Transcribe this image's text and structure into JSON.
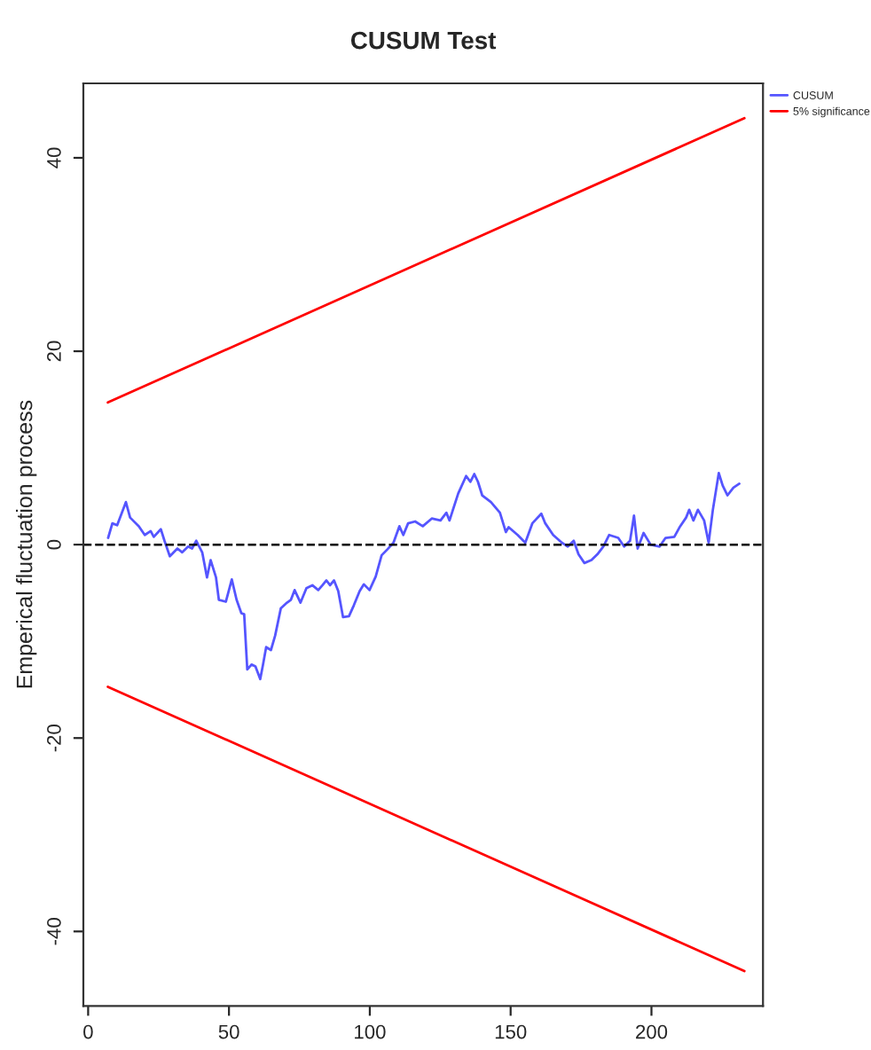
{
  "chart_data": {
    "type": "line",
    "title": "CUSUM Test",
    "ylabel": "Emperical fluctuation process",
    "xlim": [
      -1.7,
      239.6
    ],
    "ylim": [
      -47.7,
      47.7
    ],
    "xticks": [
      0,
      50,
      100,
      150,
      200
    ],
    "yticks": [
      -40,
      -20,
      0,
      20,
      40
    ],
    "grid": false,
    "legend": "top right",
    "line_style": "solid",
    "marker": "none",
    "ref_lines": [
      {
        "axis": "y",
        "value": 0,
        "color": "#000000",
        "line_style": "dashed"
      }
    ],
    "series": [
      {
        "name": "CUSUM",
        "color": "#5555ff",
        "x": [
          7.1,
          8.6,
          10.3,
          13.4,
          14.9,
          18,
          20.1,
          22.2,
          23.3,
          25.8,
          27.1,
          29,
          31.7,
          33.4,
          35.5,
          36.9,
          38.4,
          40.5,
          42.2,
          43.5,
          45.4,
          46.4,
          48.9,
          51,
          52.7,
          54.4,
          55.4,
          56.5,
          58,
          59.4,
          61.1,
          62.1,
          63.2,
          64.9,
          66.4,
          68.4,
          70.6,
          72,
          73.3,
          75.4,
          77.5,
          79.6,
          81.7,
          83.2,
          84.6,
          85.9,
          87.3,
          88.8,
          90.5,
          92.6,
          94.3,
          96.4,
          97.9,
          99.9,
          102.1,
          104.2,
          106.2,
          108.4,
          110.5,
          111.9,
          113.6,
          116.1,
          118.8,
          122,
          125.1,
          127.2,
          128.3,
          131.4,
          134.2,
          135.7,
          137.1,
          138.4,
          139.9,
          143,
          146.2,
          148.3,
          149.3,
          152.5,
          155.2,
          157.7,
          160.9,
          162.3,
          165.1,
          168.2,
          170.3,
          172.4,
          174.1,
          176.2,
          178.7,
          180.8,
          182.9,
          185,
          188.2,
          190.3,
          192.4,
          193.8,
          195.1,
          197.2,
          199.7,
          202.9,
          205,
          208.1,
          210.2,
          212.3,
          213.4,
          214.9,
          216.5,
          218.7,
          220.3,
          221.8,
          223.9,
          225.3,
          227,
          229.1,
          231.2
        ],
        "values": [
          0.7,
          2.2,
          2.0,
          4.4,
          2.8,
          1.9,
          1.0,
          1.4,
          0.8,
          1.6,
          0.4,
          -1.2,
          -0.4,
          -0.8,
          -0.2,
          -0.4,
          0.4,
          -0.8,
          -3.4,
          -1.6,
          -3.4,
          -5.7,
          -5.9,
          -3.6,
          -5.7,
          -7.1,
          -7.2,
          -12.9,
          -12.4,
          -12.6,
          -13.9,
          -12.4,
          -10.6,
          -10.9,
          -9.4,
          -6.6,
          -6.0,
          -5.7,
          -4.7,
          -6.0,
          -4.5,
          -4.2,
          -4.7,
          -4.2,
          -3.7,
          -4.2,
          -3.7,
          -4.8,
          -7.5,
          -7.4,
          -6.3,
          -4.8,
          -4.1,
          -4.7,
          -3.3,
          -1.1,
          -0.5,
          0.2,
          1.9,
          1.0,
          2.2,
          2.4,
          1.9,
          2.7,
          2.5,
          3.3,
          2.5,
          5.3,
          7.1,
          6.5,
          7.3,
          6.5,
          5.1,
          4.4,
          3.3,
          1.3,
          1.8,
          1.0,
          0.2,
          2.2,
          3.2,
          2.2,
          1.0,
          0.2,
          -0.2,
          0.4,
          -1.0,
          -1.9,
          -1.6,
          -1.0,
          -0.2,
          1.0,
          0.7,
          -0.2,
          0.4,
          3.0,
          -0.4,
          1.2,
          0.0,
          -0.2,
          0.7,
          0.8,
          1.9,
          2.8,
          3.6,
          2.5,
          3.6,
          2.5,
          0.2,
          3.6,
          7.4,
          6.1,
          5.1,
          5.9,
          6.3
        ]
      },
      {
        "name": "5% significance",
        "color": "#ff0000",
        "x": [
          7,
          233
        ],
        "values": [
          14.7,
          44.1
        ]
      },
      {
        "color": "#ff0000",
        "x": [
          7,
          233
        ],
        "values": [
          -14.7,
          -44.1
        ]
      }
    ]
  }
}
